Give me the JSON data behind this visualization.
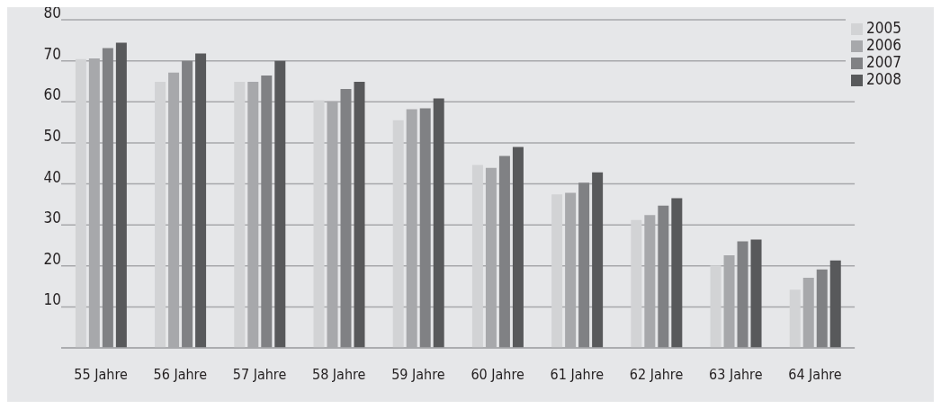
{
  "chart_data": {
    "type": "bar",
    "categories": [
      "55 Jahre",
      "56 Jahre",
      "57 Jahre",
      "58 Jahre",
      "59 Jahre",
      "60 Jahre",
      "61 Jahre",
      "62 Jahre",
      "63 Jahre",
      "64 Jahre"
    ],
    "series": [
      {
        "name": "2005",
        "color": "#d2d3d5",
        "values": [
          70.4,
          64.9,
          64.9,
          60.4,
          55.5,
          44.6,
          37.4,
          31.2,
          20.1,
          14.2
        ]
      },
      {
        "name": "2006",
        "color": "#a7a8ab",
        "values": [
          70.6,
          67.1,
          64.9,
          60.1,
          58.2,
          43.9,
          37.8,
          32.4,
          22.6,
          17.1
        ]
      },
      {
        "name": "2007",
        "color": "#808184",
        "values": [
          73.1,
          70.0,
          66.4,
          63.1,
          58.4,
          46.8,
          40.3,
          34.7,
          26.0,
          19.1
        ]
      },
      {
        "name": "2008",
        "color": "#58595b",
        "values": [
          74.4,
          71.8,
          70.0,
          64.9,
          60.8,
          49.0,
          42.8,
          36.5,
          26.4,
          21.3
        ]
      }
    ],
    "ylim": [
      0,
      80
    ],
    "yticks": [
      {
        "value": 0,
        "label": null
      },
      10,
      20,
      30,
      40,
      50,
      60,
      70,
      80
    ],
    "grid": "y",
    "legend": "top right"
  }
}
